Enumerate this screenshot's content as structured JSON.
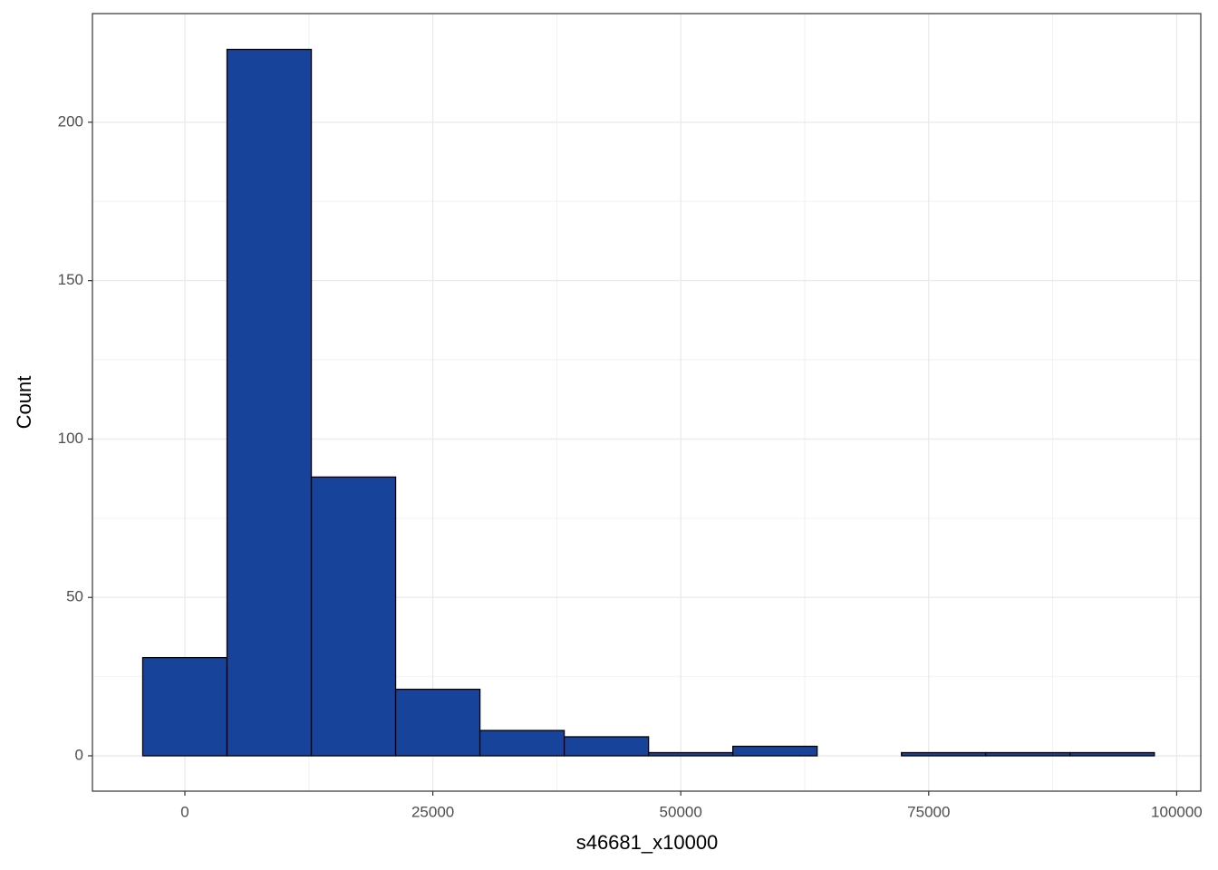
{
  "chart_data": {
    "type": "histogram",
    "x_label": "s46681_x10000",
    "y_label": "Count",
    "bins": [
      -4250,
      4250,
      12750,
      21250,
      29750,
      38250,
      46750,
      55250,
      63750,
      72250,
      80750,
      89250,
      97750
    ],
    "values": [
      31,
      223,
      88,
      21,
      8,
      6,
      1,
      3,
      0,
      1,
      1,
      1
    ],
    "color": "#18439a",
    "edge_color": "#000000",
    "xlim": [
      -9320,
      102430
    ],
    "ylim": [
      -11.16,
      234.3
    ],
    "xticks": [
      0,
      25000,
      50000,
      75000,
      100000
    ],
    "yticks": [
      0,
      50,
      100,
      150,
      200
    ],
    "grid": true,
    "minor_grid": true
  }
}
